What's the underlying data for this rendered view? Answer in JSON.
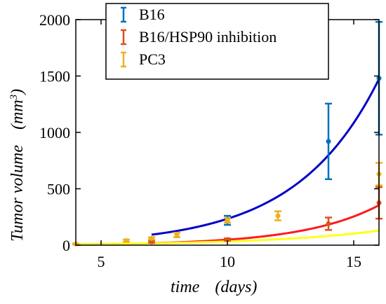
{
  "chart_data": {
    "type": "scatter",
    "title": "",
    "xlabel": "time",
    "xunit": "(days)",
    "ylabel": "Tumor volume",
    "yunit": "(mm",
    "yunit_sup": "3",
    "yunit_close": ")",
    "xlim": [
      4,
      16
    ],
    "ylim": [
      0,
      2000
    ],
    "xticks": [
      5,
      10,
      15
    ],
    "yticks": [
      0,
      500,
      1000,
      1500,
      2000
    ],
    "grid": false,
    "legend_position": "top",
    "series": [
      {
        "name": "B16",
        "color": "#0072BD",
        "fit_color": "#0000C8",
        "x": [
          10,
          14,
          16
        ],
        "y": [
          220,
          920,
          1480
        ],
        "err": [
          40,
          335,
          500
        ],
        "fit": {
          "a": 93,
          "b": 0.307,
          "x_start": 7,
          "x_end": 16
        }
      },
      {
        "name": "B16/HSP90 inhibition",
        "color": "#D95319",
        "fit_color": "#FF1A1A",
        "x": [
          7,
          10,
          14,
          16
        ],
        "y": [
          30,
          50,
          190,
          375
        ],
        "err": [
          10,
          10,
          55,
          140
        ],
        "fit": {
          "a": 18,
          "b": 0.331,
          "x_start": 7,
          "x_end": 16
        }
      },
      {
        "name": "PC3",
        "color": "#EDB120",
        "fit_color": "#FFFF1A",
        "x": [
          4,
          6,
          7,
          8,
          10,
          12,
          16
        ],
        "y": [
          10,
          40,
          60,
          90,
          220,
          260,
          630
        ],
        "err": [
          5,
          10,
          10,
          20,
          20,
          40,
          100
        ],
        "fit": {
          "a": 16.7,
          "b": 0.227,
          "x_start": 4,
          "x_end": 16
        }
      }
    ]
  }
}
